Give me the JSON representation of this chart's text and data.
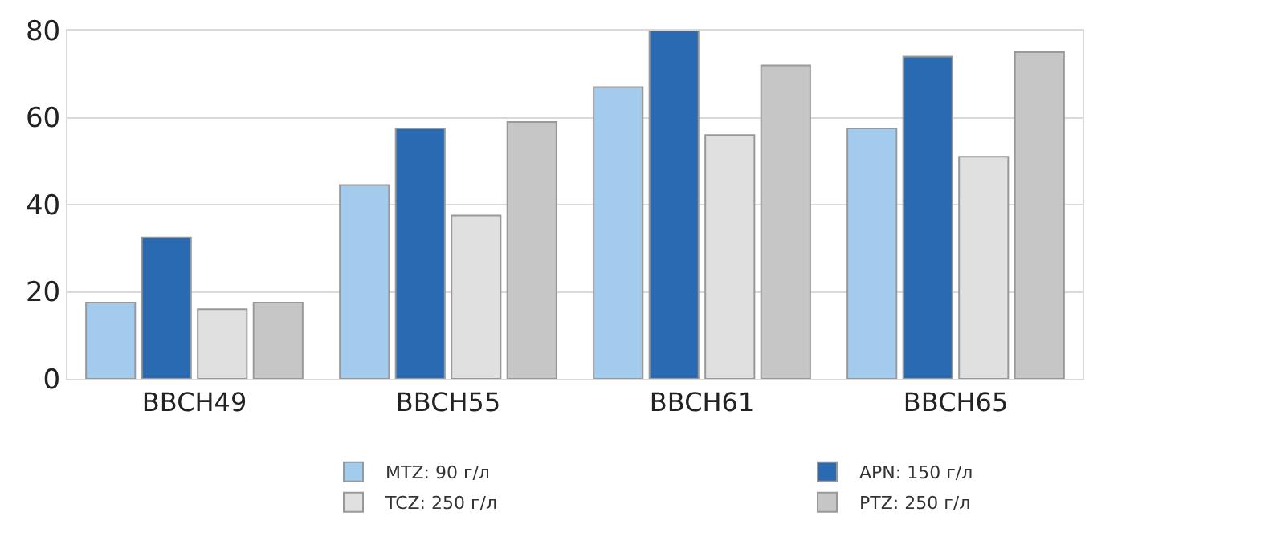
{
  "chart_data": {
    "type": "bar",
    "categories": [
      "BBCH49",
      "BBCH55",
      "BBCH61",
      "BBCH65"
    ],
    "series": [
      {
        "name": "MTZ: 90 г/л",
        "color": "#a3cbee",
        "values": [
          17.5,
          44.5,
          67,
          57.5
        ]
      },
      {
        "name": "APN: 150 г/л",
        "color": "#2a6ab2",
        "values": [
          32.5,
          57.5,
          80,
          74
        ]
      },
      {
        "name": "TCZ: 250 г/л",
        "color": "#e0e0e0",
        "values": [
          16,
          37.5,
          56,
          51
        ]
      },
      {
        "name": "PTZ: 250 г/л",
        "color": "#c6c6c6",
        "values": [
          17.5,
          59,
          72,
          75
        ]
      }
    ],
    "ylim": [
      0,
      80
    ],
    "yticks": [
      0,
      20,
      40,
      60,
      80
    ],
    "grid": "y",
    "legend": "bottom"
  }
}
